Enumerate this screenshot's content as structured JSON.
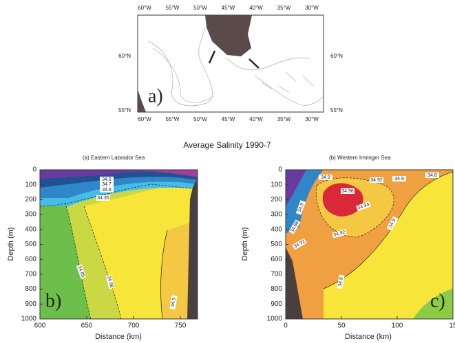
{
  "map": {
    "label": "a)",
    "lon_ticks": [
      "60°W",
      "55°W",
      "50°W",
      "45°W",
      "40°W",
      "35°W",
      "30°W"
    ],
    "lat_ticks": [
      "60°N",
      "55°N"
    ]
  },
  "title": "Average Salinity   1990-7",
  "panels": [
    {
      "subtitle": "(a) Eastern Labrador Sea",
      "label": "b)",
      "xlabel": "Distance (km)",
      "ylabel": "Depth (m)",
      "xticks": [
        "600",
        "650",
        "700",
        "750"
      ],
      "yticks": [
        "0",
        "100",
        "200",
        "300",
        "400",
        "500",
        "600",
        "700",
        "800",
        "900",
        "1000"
      ],
      "contour_labels": [
        "34.6",
        "34.7",
        "34.8",
        "34.35",
        "34.85",
        "34.88",
        "34.9"
      ]
    },
    {
      "subtitle": "(b) Western Irminger Sea",
      "label": "c)",
      "xlabel": "Distance (km)",
      "ylabel": "Depth (m)",
      "xticks": [
        "0",
        "50",
        "100",
        "15"
      ],
      "yticks": [
        "0",
        "100",
        "200",
        "300",
        "400",
        "500",
        "600",
        "700",
        "800",
        "900",
        "1000"
      ],
      "contour_labels": [
        "34.9",
        "34.96",
        "34.92",
        "34.9",
        "34.88",
        "34.8",
        "34.94",
        "34.92",
        "34.9",
        "34.92",
        "34.9",
        "34.9"
      ]
    }
  ]
}
